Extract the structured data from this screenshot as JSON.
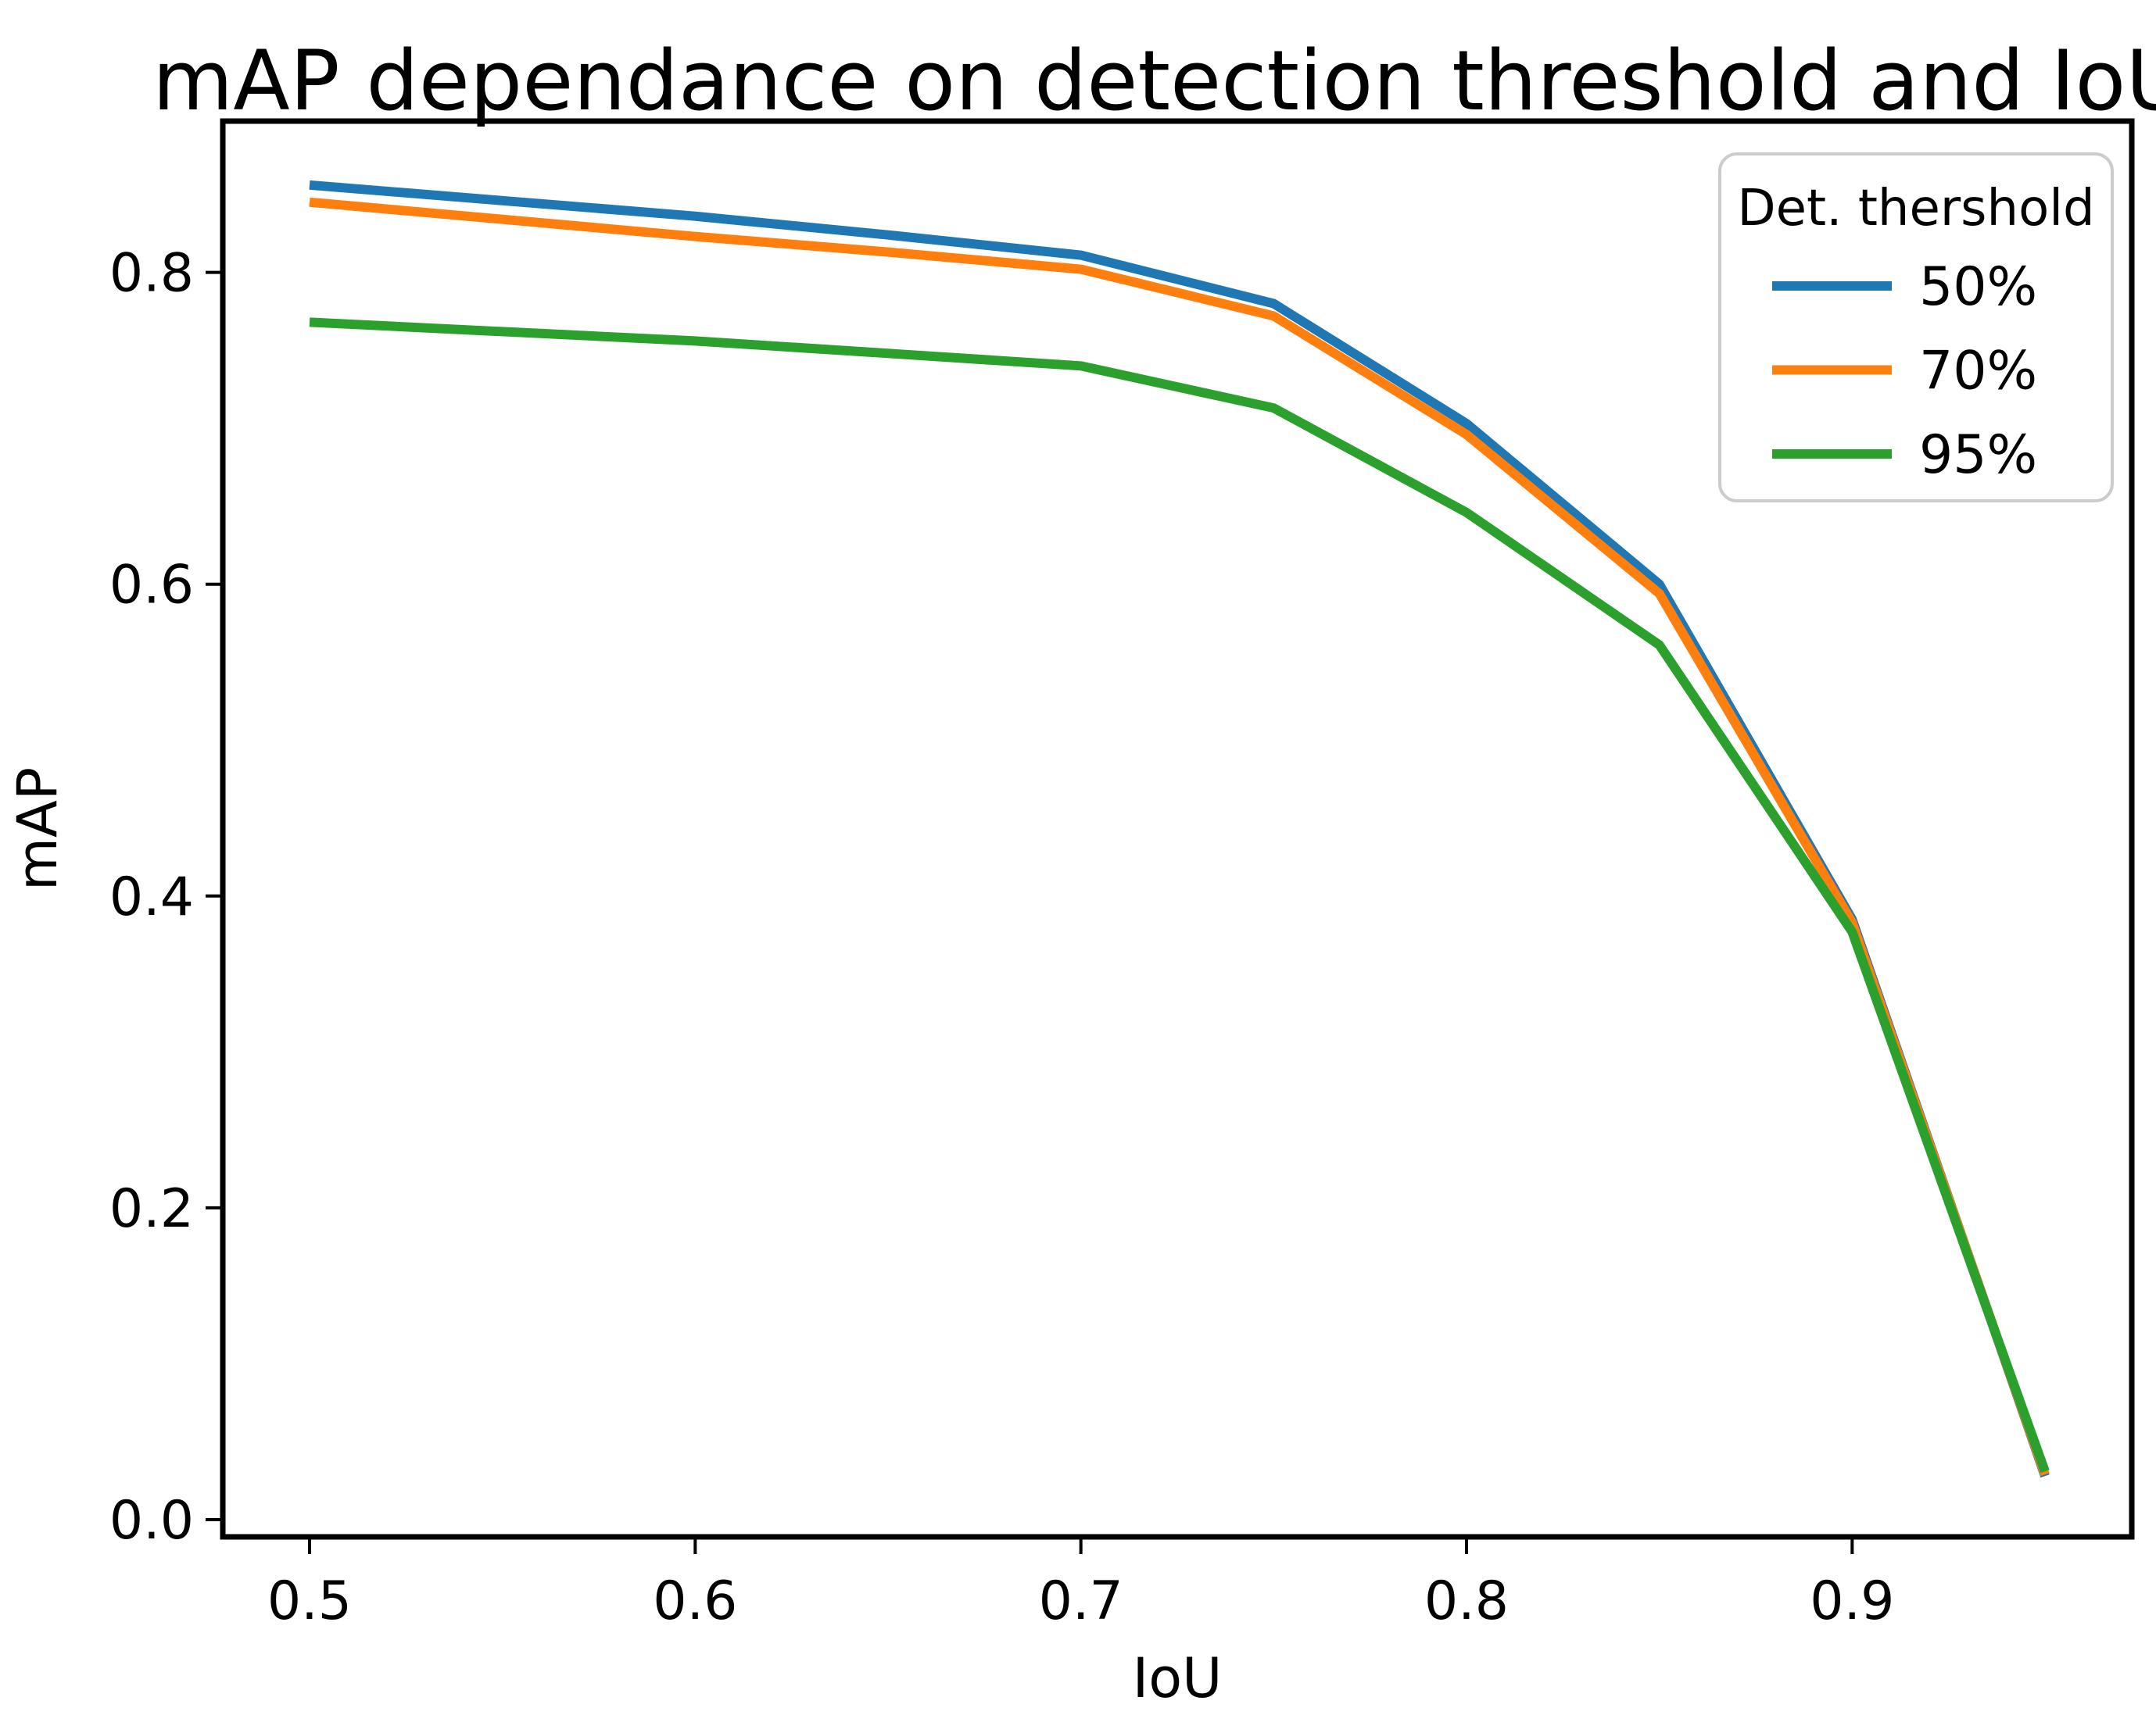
{
  "figure": {
    "title": "mAP dependance on detection threshold and IoU",
    "background_color": "#ffffff",
    "spine_color": "#000000",
    "text_color": "#000000"
  },
  "legend": {
    "title": "Det. thershold",
    "entries": [
      {
        "label": "50%",
        "color": "#1f77b4"
      },
      {
        "label": "70%",
        "color": "#ff7f0e"
      },
      {
        "label": "95%",
        "color": "#2ca02c"
      }
    ]
  },
  "chart_data": {
    "type": "line",
    "title": "mAP dependance on detection threshold and IoU",
    "xlabel": "IoU",
    "ylabel": "mAP",
    "x": [
      0.5,
      0.55,
      0.6,
      0.65,
      0.7,
      0.75,
      0.8,
      0.85,
      0.9,
      0.95
    ],
    "series": [
      {
        "name": "50%",
        "color": "#1f77b4",
        "values": [
          0.856,
          0.846,
          0.836,
          0.824,
          0.811,
          0.78,
          0.703,
          0.6,
          0.385,
          0.028
        ]
      },
      {
        "name": "70%",
        "color": "#ff7f0e",
        "values": [
          0.845,
          0.834,
          0.823,
          0.813,
          0.802,
          0.772,
          0.696,
          0.594,
          0.383,
          0.029
        ]
      },
      {
        "name": "95%",
        "color": "#2ca02c",
        "values": [
          0.768,
          0.762,
          0.756,
          0.748,
          0.74,
          0.713,
          0.646,
          0.561,
          0.377,
          0.031
        ]
      }
    ],
    "xlim": [
      0.4775,
      0.9725
    ],
    "ylim": [
      -0.011,
      0.897
    ],
    "xticks": [
      0.5,
      0.6,
      0.7,
      0.8,
      0.9
    ],
    "xtick_labels": [
      "0.5",
      "0.6",
      "0.7",
      "0.8",
      "0.9"
    ],
    "yticks": [
      0.0,
      0.2,
      0.4,
      0.6,
      0.8
    ],
    "ytick_labels": [
      "0.0",
      "0.2",
      "0.4",
      "0.6",
      "0.8"
    ],
    "grid": false,
    "legend_position": "upper right",
    "legend_title": "Det. thershold"
  }
}
